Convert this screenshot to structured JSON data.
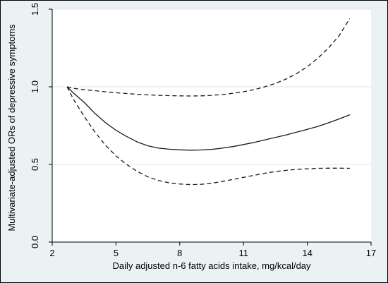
{
  "chart_data": {
    "type": "line",
    "title": "",
    "xlabel": "Daily adjusted  n-6 fatty acids intake, mg/kcal/day",
    "ylabel": "Multivariate-adjusted ORs of depressive symptoms",
    "xlim": [
      2,
      17
    ],
    "ylim": [
      0,
      1.5
    ],
    "xticks": [
      2,
      5,
      8,
      11,
      14,
      17
    ],
    "yticks": [
      0.0,
      0.5,
      1.0,
      1.5
    ],
    "xtick_labels": [
      "2",
      "5",
      "8",
      "11",
      "14",
      "17"
    ],
    "ytick_labels": [
      "0.0",
      "0.5",
      "1.0",
      "1.5"
    ],
    "grid": "horizontal",
    "legend": "none",
    "series": [
      {
        "style": "solid",
        "x": [
          2.7,
          3.0,
          3.5,
          4.0,
          4.5,
          5.0,
          5.5,
          6.0,
          6.5,
          7.0,
          7.5,
          8.0,
          8.5,
          9.0,
          9.5,
          10.0,
          10.5,
          11.0,
          11.5,
          12.0,
          12.5,
          13.0,
          13.5,
          14.0,
          14.5,
          15.0,
          15.5,
          16.0
        ],
        "y": [
          1.0,
          0.96,
          0.9,
          0.83,
          0.77,
          0.72,
          0.68,
          0.645,
          0.62,
          0.605,
          0.598,
          0.594,
          0.592,
          0.593,
          0.597,
          0.605,
          0.615,
          0.628,
          0.642,
          0.658,
          0.674,
          0.69,
          0.708,
          0.726,
          0.745,
          0.768,
          0.793,
          0.82
        ]
      },
      {
        "style": "dashed",
        "x": [
          2.7,
          3.0,
          3.5,
          4.0,
          4.5,
          5.0,
          5.5,
          6.0,
          6.5,
          7.0,
          7.5,
          8.0,
          8.5,
          9.0,
          9.5,
          10.0,
          10.5,
          11.0,
          11.5,
          12.0,
          12.5,
          13.0,
          13.5,
          14.0,
          14.5,
          15.0,
          15.5,
          16.0
        ],
        "y": [
          1.0,
          0.99,
          0.982,
          0.975,
          0.968,
          0.962,
          0.957,
          0.952,
          0.948,
          0.945,
          0.943,
          0.942,
          0.941,
          0.942,
          0.945,
          0.95,
          0.958,
          0.968,
          0.982,
          1.0,
          1.022,
          1.05,
          1.085,
          1.13,
          1.185,
          1.25,
          1.33,
          1.44
        ]
      },
      {
        "style": "dashed",
        "x": [
          2.7,
          3.0,
          3.5,
          4.0,
          4.5,
          5.0,
          5.5,
          6.0,
          6.5,
          7.0,
          7.5,
          8.0,
          8.5,
          9.0,
          9.5,
          10.0,
          10.5,
          11.0,
          11.5,
          12.0,
          12.5,
          13.0,
          13.5,
          14.0,
          14.5,
          15.0,
          15.5,
          16.0
        ],
        "y": [
          1.0,
          0.92,
          0.81,
          0.71,
          0.625,
          0.555,
          0.5,
          0.455,
          0.42,
          0.397,
          0.382,
          0.374,
          0.37,
          0.372,
          0.379,
          0.39,
          0.403,
          0.417,
          0.43,
          0.443,
          0.454,
          0.462,
          0.468,
          0.472,
          0.475,
          0.476,
          0.476,
          0.475
        ]
      }
    ]
  }
}
